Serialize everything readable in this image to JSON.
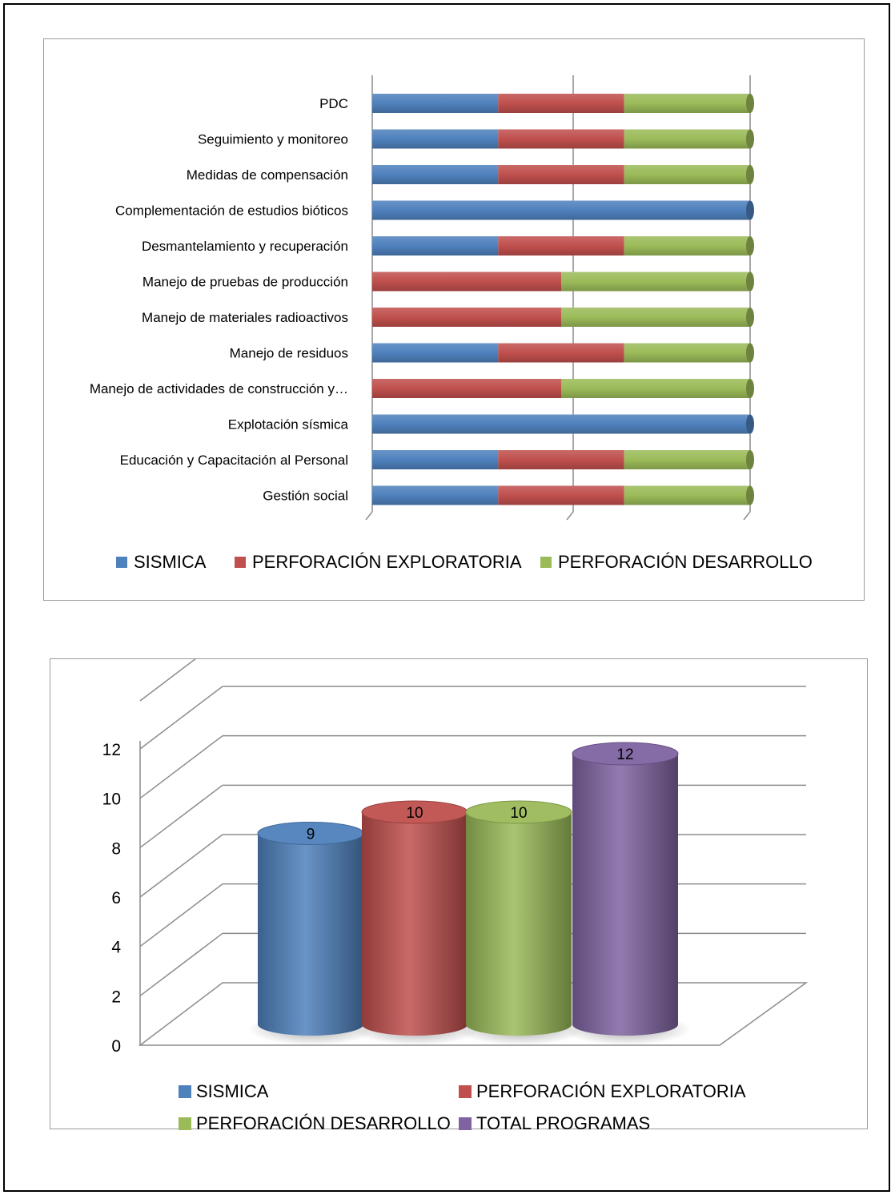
{
  "colors": {
    "blue": "#4f81bd",
    "red": "#c0504d",
    "green": "#9bbb59",
    "purple": "#8064a2"
  },
  "chart_data": [
    {
      "type": "bar",
      "orientation": "horizontal",
      "stacked": "100%",
      "categories": [
        "PDC",
        "Seguimiento y monitoreo",
        "Medidas de compensación",
        "Complementación de estudios bióticos",
        "Desmantelamiento y recuperación",
        "Manejo de pruebas de producción",
        "Manejo de materiales radioactivos",
        "Manejo de residuos",
        "Manejo de actividades de construcción y…",
        "Explotación sísmica",
        "Educación y Capacitación al Personal",
        "Gestión social"
      ],
      "series": [
        {
          "name": "SISMICA",
          "color": "#4f81bd",
          "values": [
            1,
            1,
            1,
            1,
            1,
            0,
            0,
            1,
            0,
            1,
            1,
            1
          ]
        },
        {
          "name": "PERFORACIÓN EXPLORATORIA",
          "color": "#c0504d",
          "values": [
            1,
            1,
            1,
            0,
            1,
            1,
            1,
            1,
            1,
            0,
            1,
            1
          ]
        },
        {
          "name": "PERFORACIÓN DESARROLLO",
          "color": "#9bbb59",
          "values": [
            1,
            1,
            1,
            0,
            1,
            1,
            1,
            1,
            1,
            0,
            1,
            1
          ]
        }
      ],
      "grid": true,
      "legend": "bottom"
    },
    {
      "type": "bar",
      "style": "3d-cylinder",
      "categories": [
        "SISMICA",
        "PERFORACIÓN EXPLORATORIA",
        "PERFORACIÓN DESARROLLO",
        "TOTAL PROGRAMAS"
      ],
      "values": [
        9,
        10,
        10,
        12
      ],
      "colors": [
        "#4f81bd",
        "#c0504d",
        "#9bbb59",
        "#8064a2"
      ],
      "data_labels": [
        "9",
        "10",
        "10",
        "12"
      ],
      "yticks": [
        "0",
        "2",
        "4",
        "6",
        "8",
        "10",
        "12"
      ],
      "ylim": [
        0,
        12
      ],
      "grid": true,
      "legend": "bottom"
    }
  ],
  "legend1": [
    {
      "label": "SISMICA",
      "color": "#4f81bd"
    },
    {
      "label": "PERFORACIÓN EXPLORATORIA",
      "color": "#c0504d"
    },
    {
      "label": "PERFORACIÓN DESARROLLO",
      "color": "#9bbb59"
    }
  ],
  "legend2": [
    {
      "label": "SISMICA",
      "color": "#4f81bd"
    },
    {
      "label": "PERFORACIÓN EXPLORATORIA",
      "color": "#c0504d"
    },
    {
      "label": "PERFORACIÓN DESARROLLO",
      "color": "#9bbb59"
    },
    {
      "label": "TOTAL PROGRAMAS",
      "color": "#8064a2"
    }
  ]
}
